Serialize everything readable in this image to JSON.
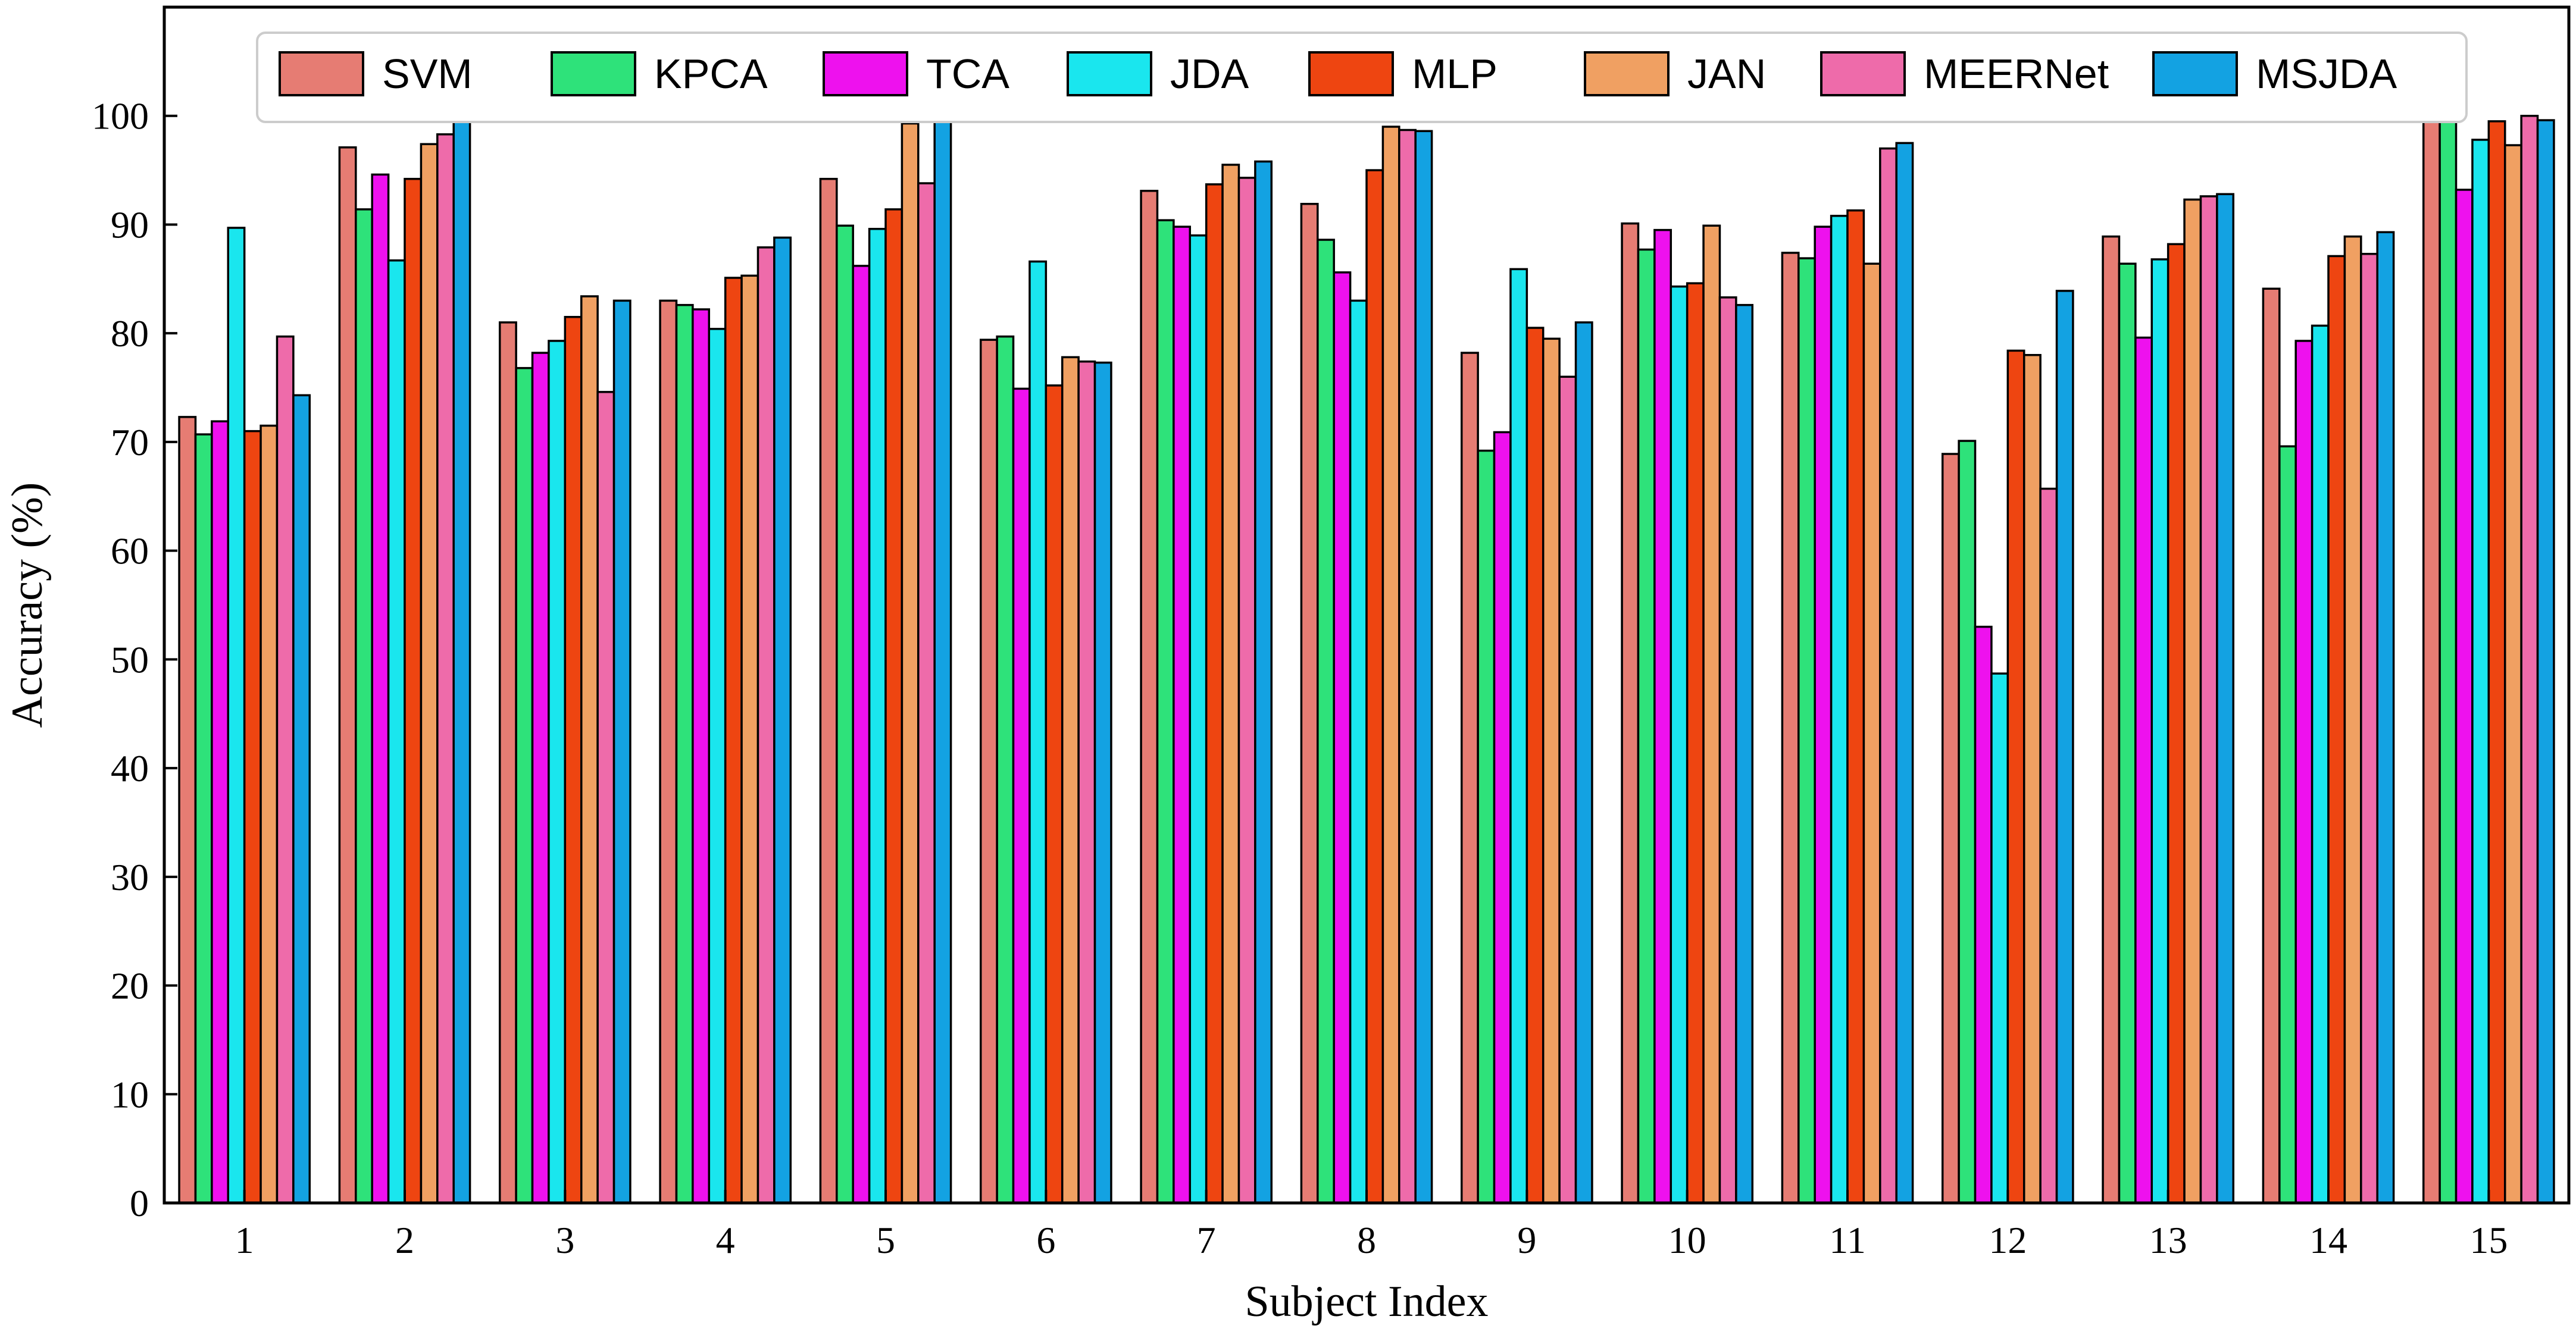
{
  "chart_data": {
    "type": "bar",
    "xlabel": "Subject Index",
    "ylabel": "Accuracy (%)",
    "ylim": [
      0,
      110
    ],
    "yticks": [
      0,
      10,
      20,
      30,
      40,
      50,
      60,
      70,
      80,
      90,
      100
    ],
    "grid": false,
    "legend": "top",
    "categories": [
      "1",
      "2",
      "3",
      "4",
      "5",
      "6",
      "7",
      "8",
      "9",
      "10",
      "11",
      "12",
      "13",
      "14",
      "15"
    ],
    "series": [
      {
        "name": "SVM",
        "color": "#e67c73",
        "values": [
          72.3,
          97.1,
          81.0,
          83.0,
          94.2,
          79.4,
          93.1,
          91.9,
          78.2,
          90.1,
          87.4,
          68.9,
          88.9,
          84.1,
          100.0
        ]
      },
      {
        "name": "KPCA",
        "color": "#2ee27a",
        "values": [
          70.7,
          91.4,
          76.8,
          82.6,
          89.9,
          79.7,
          90.4,
          88.6,
          69.2,
          87.7,
          86.9,
          70.1,
          86.4,
          69.6,
          100.0
        ]
      },
      {
        "name": "TCA",
        "color": "#ee11ee",
        "values": [
          71.9,
          94.6,
          78.2,
          82.2,
          86.2,
          74.9,
          89.8,
          85.6,
          70.9,
          89.5,
          89.8,
          53.0,
          79.6,
          79.3,
          93.2
        ]
      },
      {
        "name": "JDA",
        "color": "#1ae6ee",
        "values": [
          89.7,
          86.7,
          79.3,
          80.4,
          89.6,
          86.6,
          89.0,
          83.0,
          85.9,
          84.3,
          90.8,
          48.7,
          86.8,
          80.7,
          97.8
        ]
      },
      {
        "name": "MLP",
        "color": "#ee4511",
        "values": [
          71.0,
          94.2,
          81.5,
          85.1,
          91.4,
          75.2,
          93.7,
          95.0,
          80.5,
          84.6,
          91.3,
          78.4,
          88.2,
          87.1,
          99.5
        ]
      },
      {
        "name": "JAN",
        "color": "#f0a062",
        "values": [
          71.5,
          97.4,
          83.4,
          85.3,
          99.3,
          77.8,
          95.5,
          99.0,
          79.5,
          89.9,
          86.4,
          78.0,
          92.3,
          88.9,
          97.3
        ]
      },
      {
        "name": "MEERNet",
        "color": "#ee6baa",
        "values": [
          79.7,
          98.3,
          74.6,
          87.9,
          93.8,
          77.4,
          94.3,
          98.7,
          76.0,
          83.3,
          97.0,
          65.7,
          92.6,
          87.3,
          100.0
        ]
      },
      {
        "name": "MSJDA",
        "color": "#13a2e2",
        "values": [
          74.3,
          99.9,
          83.0,
          88.8,
          100.0,
          77.3,
          95.8,
          98.6,
          81.0,
          82.6,
          97.5,
          83.9,
          92.8,
          89.3,
          99.6
        ]
      }
    ]
  }
}
